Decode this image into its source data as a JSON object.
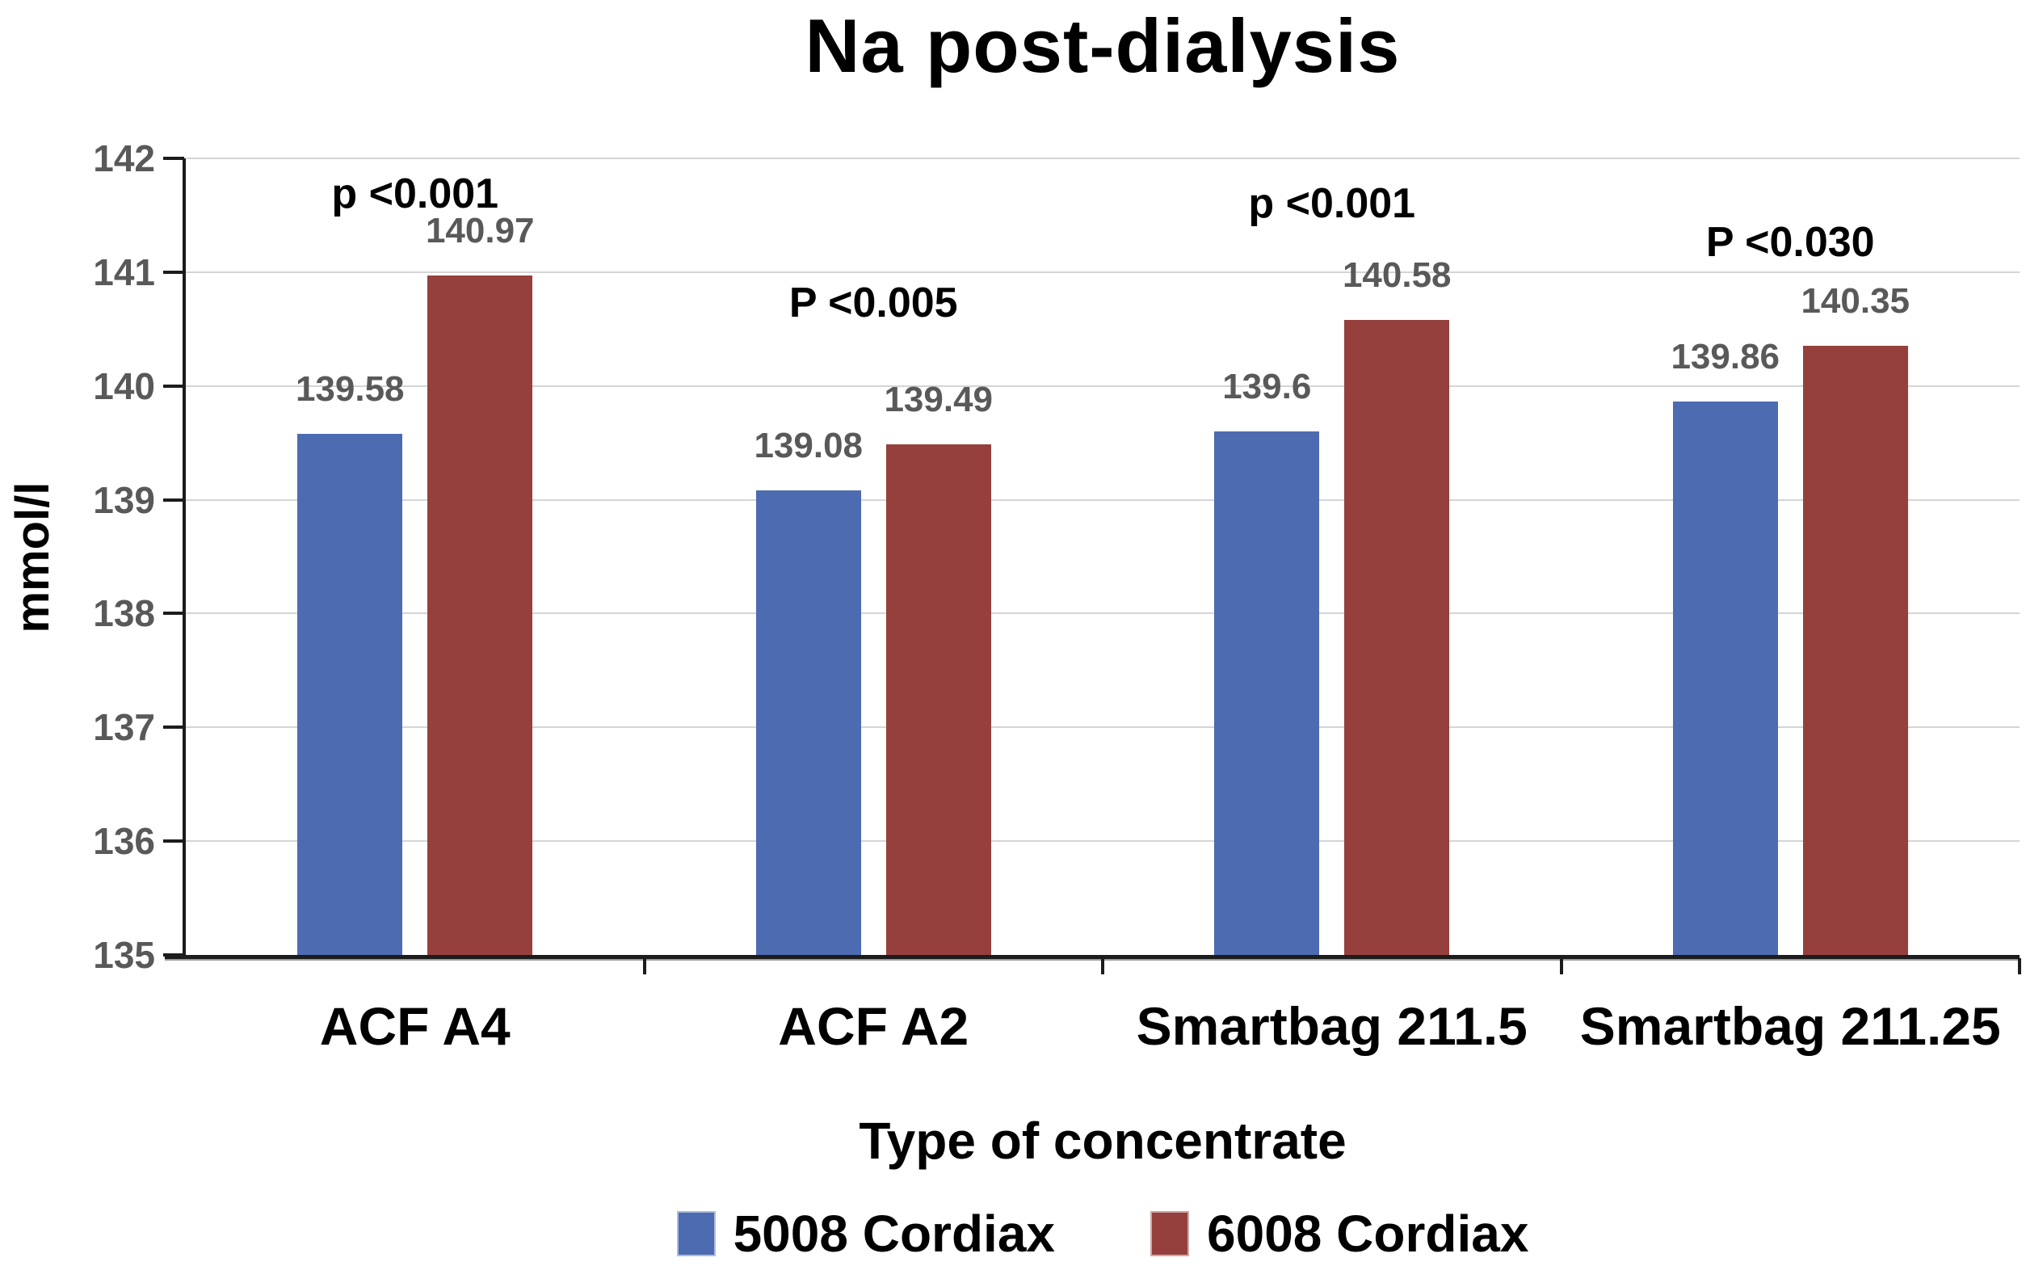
{
  "chart_data": {
    "type": "bar",
    "title": "Na post-dialysis",
    "xlabel": "Type of concentrate",
    "ylabel": "mmol/l",
    "ylim": [
      135,
      142
    ],
    "ytick_step": 1,
    "grid": true,
    "legend_position": "bottom",
    "categories": [
      "ACF A4",
      "ACF A2",
      "Smartbag 211.5",
      "Smartbag 211.25"
    ],
    "series": [
      {
        "name": "5008 Cordiax",
        "color": "#4D6BB0",
        "values": [
          139.58,
          139.08,
          139.6,
          139.86
        ]
      },
      {
        "name": "6008 Cordiax",
        "color": "#95403D",
        "values": [
          140.97,
          139.49,
          140.58,
          140.35
        ]
      }
    ],
    "annotations": [
      {
        "text": "p <0.001",
        "category": "ACF A4",
        "y_level": 141.69
      },
      {
        "text": "P <0.005",
        "category": "ACF A2",
        "y_level": 140.73
      },
      {
        "text": "p <0.001",
        "category": "Smartbag 211.5",
        "y_level": 141.6
      },
      {
        "text": "P <0.030",
        "category": "Smartbag 211.25",
        "y_level": 141.26
      }
    ],
    "colors": {
      "grid": "#D5D5D5",
      "axis": "#1C1C1C",
      "tick_label": "#595959",
      "value_label": "#595959",
      "annotation": "#000000",
      "background": "#FFFFFF"
    }
  }
}
